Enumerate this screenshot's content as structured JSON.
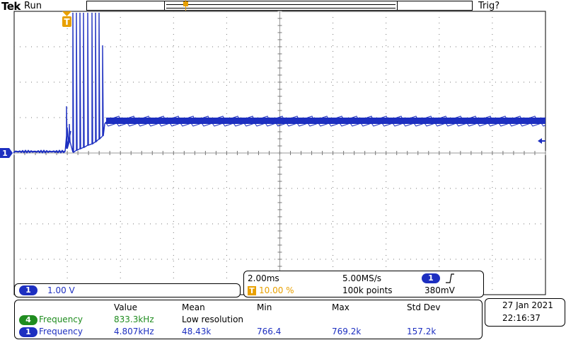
{
  "header": {
    "brand": "Tek",
    "run_status": "Run",
    "trigger_status": "Trig?"
  },
  "markers": {
    "trigger_position_label": "T",
    "channel1_label": "1"
  },
  "channel1": {
    "badge": "1",
    "scale": "1.00 V"
  },
  "timebase": {
    "time_per_div": "2.00ms",
    "sample_rate": "5.00MS/s",
    "trigger_badge": "T",
    "trigger_position": "10.00 %",
    "record_length": "100k points",
    "trigger_source_badge": "1",
    "trigger_slope_icon": "rising-edge-icon",
    "trigger_level": "380mV"
  },
  "measurements": {
    "headers": [
      "Value",
      "Mean",
      "Min",
      "Max",
      "Std Dev"
    ],
    "rows": [
      {
        "badge": "4",
        "name": "Frequency",
        "value": "833.3kHz",
        "mean": "Low resolution",
        "min": "",
        "max": "",
        "std": ""
      },
      {
        "badge": "1",
        "name": "Frequency",
        "value": "4.807kHz",
        "mean": "48.43k",
        "min": "766.4",
        "max": "769.2k",
        "std": "157.2k"
      }
    ]
  },
  "datetime": {
    "date": "27 Jan  2021",
    "time": "22:16:37"
  },
  "colors": {
    "trace": "#1d2fc0",
    "channel1": "#1d2fc0",
    "channel4": "#1f8c1f",
    "trigger": "#e8a000",
    "grid": "#777777"
  }
}
